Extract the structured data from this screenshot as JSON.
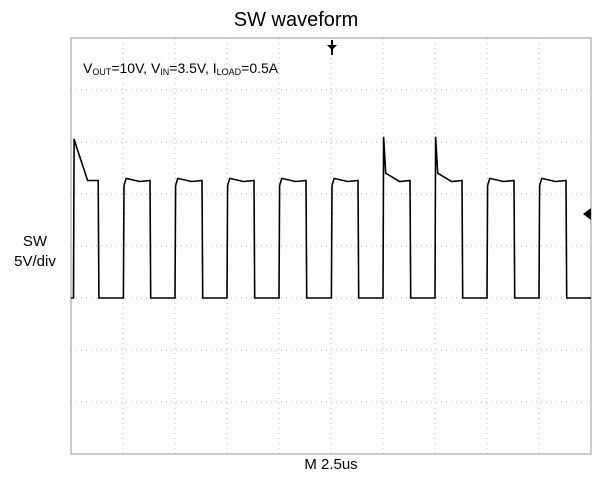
{
  "chart_data": {
    "type": "line",
    "title": "SW waveform",
    "channel_label": "SW",
    "channel_scale": "5V/div",
    "timebase": "M 2.5us",
    "annotation": {
      "vout_sym": "V",
      "vout_sub": "OUT",
      "vout_val": "=10V, ",
      "vin_sym": "V",
      "vin_sub": "IN",
      "vin_val": "=3.5V, ",
      "iload_sym": "I",
      "iload_sub": "LOAD",
      "iload_val": "=0.5A"
    },
    "x_unit": "us",
    "y_unit": "V",
    "xlim": [
      0,
      25
    ],
    "ylim": [
      -15,
      25
    ],
    "grid": true,
    "series": [
      {
        "values_description": "",
        "points": [
          [
            0.0,
            0.0
          ],
          [
            0.12,
            0.0
          ],
          [
            0.15,
            15.3
          ],
          [
            0.22,
            14.8
          ],
          [
            0.8,
            11.3
          ],
          [
            1.31,
            11.3
          ],
          [
            1.34,
            0.0
          ],
          [
            2.52,
            0.0
          ],
          [
            2.55,
            10.8
          ],
          [
            2.65,
            11.5
          ],
          [
            3.3,
            11.2
          ],
          [
            3.8,
            11.3
          ],
          [
            3.83,
            0.0
          ],
          [
            5.0,
            0.0
          ],
          [
            5.03,
            10.8
          ],
          [
            5.13,
            11.5
          ],
          [
            5.8,
            11.2
          ],
          [
            6.3,
            11.3
          ],
          [
            6.33,
            0.0
          ],
          [
            7.5,
            0.0
          ],
          [
            7.53,
            10.8
          ],
          [
            7.63,
            11.5
          ],
          [
            8.3,
            11.2
          ],
          [
            8.8,
            11.3
          ],
          [
            8.83,
            0.0
          ],
          [
            10.0,
            0.0
          ],
          [
            10.03,
            10.8
          ],
          [
            10.13,
            11.5
          ],
          [
            10.8,
            11.2
          ],
          [
            11.3,
            11.3
          ],
          [
            11.33,
            0.0
          ],
          [
            12.52,
            0.0
          ],
          [
            12.55,
            10.8
          ],
          [
            12.65,
            11.5
          ],
          [
            13.3,
            11.2
          ],
          [
            13.8,
            11.3
          ],
          [
            13.83,
            0.0
          ],
          [
            15.0,
            0.0
          ],
          [
            15.03,
            15.5
          ],
          [
            15.13,
            12.0
          ],
          [
            15.8,
            11.2
          ],
          [
            16.3,
            11.3
          ],
          [
            16.33,
            0.0
          ],
          [
            17.5,
            0.0
          ],
          [
            17.53,
            15.5
          ],
          [
            17.63,
            12.0
          ],
          [
            18.3,
            11.2
          ],
          [
            18.8,
            11.3
          ],
          [
            18.83,
            0.0
          ],
          [
            20.0,
            0.0
          ],
          [
            20.03,
            10.8
          ],
          [
            20.13,
            11.5
          ],
          [
            20.8,
            11.2
          ],
          [
            21.3,
            11.3
          ],
          [
            21.33,
            0.0
          ],
          [
            22.5,
            0.0
          ],
          [
            22.53,
            10.8
          ],
          [
            22.63,
            11.5
          ],
          [
            23.3,
            11.2
          ],
          [
            23.8,
            11.3
          ],
          [
            23.83,
            0.0
          ],
          [
            25.0,
            0.0
          ]
        ]
      }
    ]
  }
}
